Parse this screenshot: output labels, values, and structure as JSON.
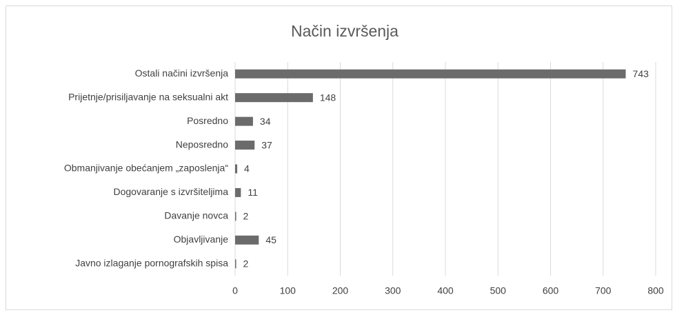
{
  "chart_data": {
    "type": "barh",
    "title": "Način izvršenja",
    "categories": [
      "Ostali načini izvršenja",
      "Prijetnje/prisiljavanje na seksualni akt",
      "Posredno",
      "Neposredno",
      "Obmanjivanje obećanjem „zaposlenja“",
      "Dogovaranje s izvršiteljima",
      "Davanje novca",
      "Objavljivanje",
      "Javno izlaganje pornografskih spisa"
    ],
    "values": [
      743,
      148,
      34,
      37,
      4,
      11,
      2,
      45,
      2
    ],
    "color": "#6b6b6b",
    "xlim": [
      0,
      800
    ],
    "xticks": [
      0,
      100,
      200,
      300,
      400,
      500,
      600,
      700,
      800
    ],
    "grid": true
  }
}
